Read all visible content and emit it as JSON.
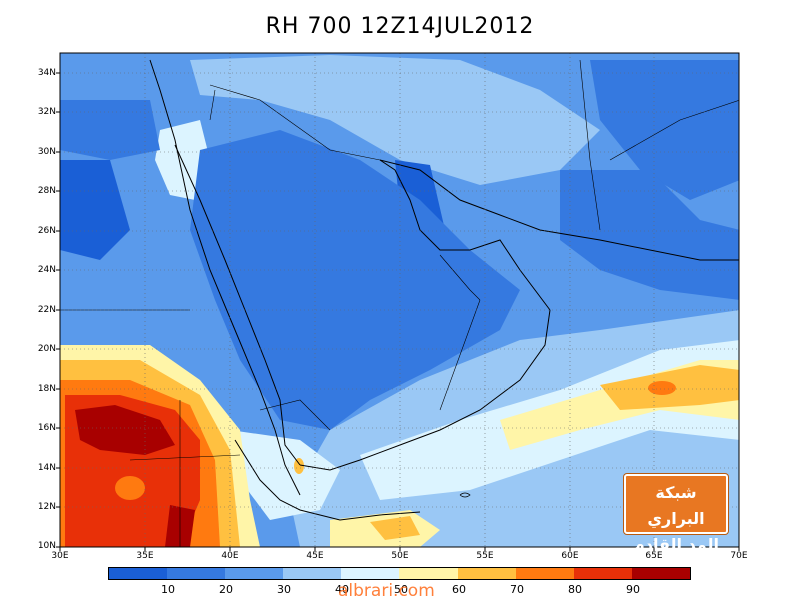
{
  "title": "RH 700 12Z14JUL2012",
  "map": {
    "lat_labels": [
      "34N",
      "32N",
      "30N",
      "28N",
      "26N",
      "24N",
      "22N",
      "20N",
      "18N",
      "16N",
      "14N",
      "12N",
      "10N"
    ],
    "lon_labels": [
      "30E",
      "35E",
      "40E",
      "45E",
      "50E",
      "55E",
      "60E",
      "65E",
      "70E"
    ],
    "extent": {
      "lon_min": 30,
      "lon_max": 70,
      "lat_min": 10,
      "lat_max": 35
    },
    "grid": "dotted"
  },
  "colorbar": {
    "labels": [
      "10",
      "20",
      "30",
      "40",
      "50",
      "60",
      "70",
      "80",
      "90"
    ],
    "colors": [
      "#1a5fd6",
      "#3579e0",
      "#5a9aeb",
      "#9ac8f5",
      "#dcf4ff",
      "#fff5a8",
      "#ffc040",
      "#ff7a10",
      "#e83008",
      "#a80000"
    ]
  },
  "badge": {
    "line1": "شبكة البراري",
    "line2": "المد القادم"
  },
  "watermark": "albrari.com"
}
